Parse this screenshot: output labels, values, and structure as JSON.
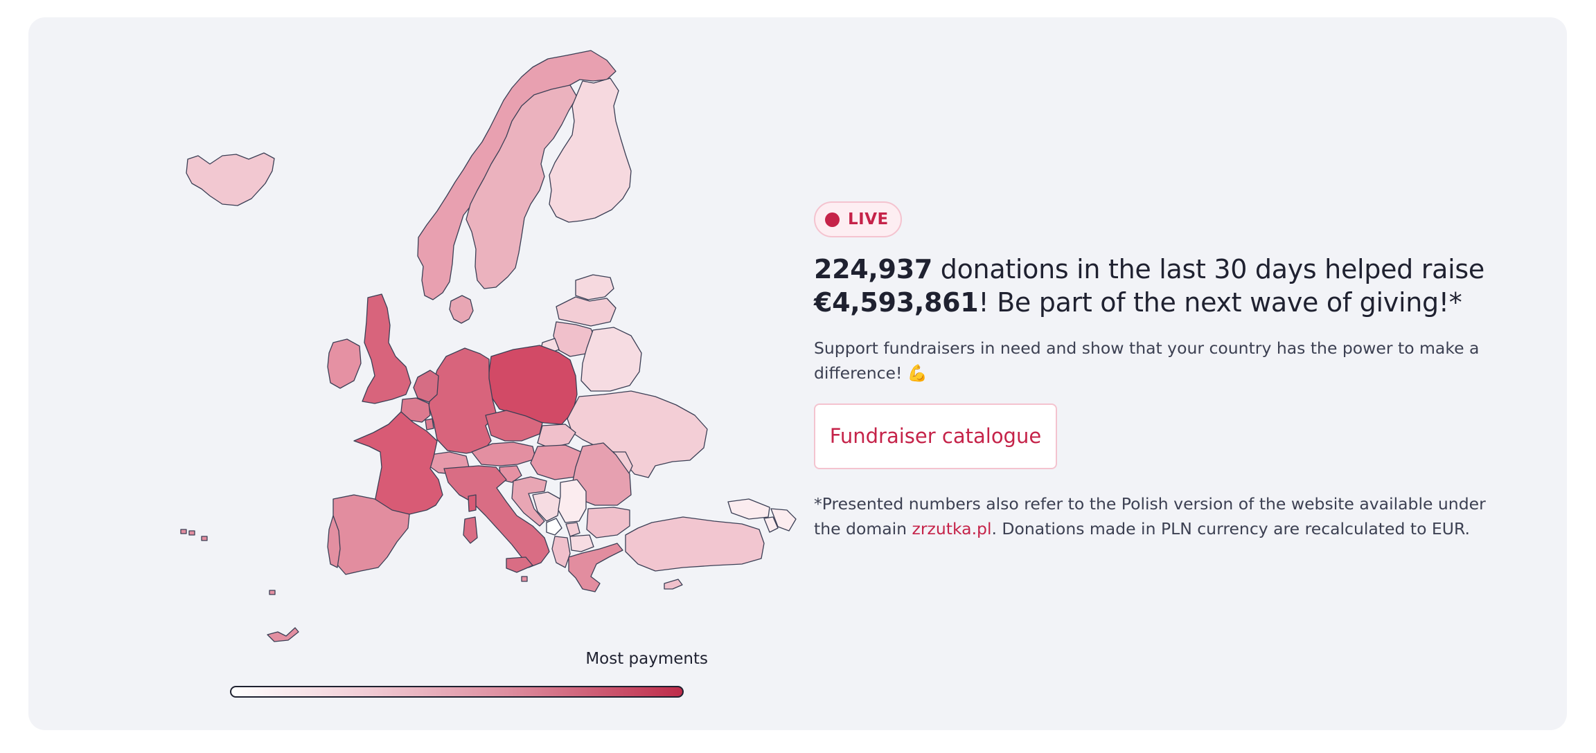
{
  "live_badge": {
    "label": "LIVE",
    "color": "#c52349"
  },
  "headline": {
    "donations_count": "224,937",
    "text_part1": " donations in the last 30 days helped raise ",
    "amount": "€4,593,861",
    "text_part2": "! Be part of the next wave of giving!*"
  },
  "subtext": "Support fundraisers in need and show that your country has the power to make a difference! 💪",
  "catalogue_button": {
    "label": "Fundraiser catalogue"
  },
  "footnote": {
    "text_before_link": "*Presented numbers also refer to the Polish version of the website available under the domain ",
    "link_text": "zrzutka.pl",
    "text_after_link": ". Donations made in PLN currency are recalculated to EUR."
  },
  "legend": {
    "label": "Most payments",
    "gradient_colors": [
      "#ffffff",
      "#f1ccd5",
      "#dd8c9e",
      "#be2c4a"
    ]
  },
  "map": {
    "theme_colors": {
      "card_background": "#f2f3f7",
      "country_border": "#3b3f55"
    },
    "regions": [
      {
        "name": "Iceland",
        "color": "#f2c8d1"
      },
      {
        "name": "Norway",
        "color": "#e8a0b0"
      },
      {
        "name": "Sweden",
        "color": "#ebb2be"
      },
      {
        "name": "Finland",
        "color": "#f6d9df"
      },
      {
        "name": "Estonia",
        "color": "#f6d9df"
      },
      {
        "name": "Latvia",
        "color": "#f3cdd5"
      },
      {
        "name": "Lithuania",
        "color": "#f0c0cb"
      },
      {
        "name": "Belarus",
        "color": "#f6dce2"
      },
      {
        "name": "Ukraine",
        "color": "#f3ced6"
      },
      {
        "name": "Moldova",
        "color": "#f3ced6"
      },
      {
        "name": "Romania",
        "color": "#e6a0b0"
      },
      {
        "name": "Bulgaria",
        "color": "#f0c0cb"
      },
      {
        "name": "Turkey",
        "color": "#f2c6d0"
      },
      {
        "name": "Greece",
        "color": "#e28d9f"
      },
      {
        "name": "Albania",
        "color": "#f0c0cb"
      },
      {
        "name": "North Macedonia",
        "color": "#f6dce2"
      },
      {
        "name": "Serbia",
        "color": "#fbecef"
      },
      {
        "name": "Bosnia and Herzegovina",
        "color": "#f6dce2"
      },
      {
        "name": "Croatia",
        "color": "#e8a6b4"
      },
      {
        "name": "Slovenia",
        "color": "#e591a3"
      },
      {
        "name": "Hungary",
        "color": "#e799aa"
      },
      {
        "name": "Slovakia",
        "color": "#f0c0cb"
      },
      {
        "name": "Czechia",
        "color": "#d9687f"
      },
      {
        "name": "Austria",
        "color": "#e38fa1"
      },
      {
        "name": "Poland",
        "color": "#d24a66"
      },
      {
        "name": "Germany",
        "color": "#d8647c"
      },
      {
        "name": "Switzerland",
        "color": "#e699aa"
      },
      {
        "name": "Italy",
        "color": "#d96d84"
      },
      {
        "name": "France",
        "color": "#d85b75"
      },
      {
        "name": "Belgium",
        "color": "#dc7a8f"
      },
      {
        "name": "Netherlands",
        "color": "#d66d84"
      },
      {
        "name": "Denmark",
        "color": "#e8a6b4"
      },
      {
        "name": "United Kingdom",
        "color": "#d8647c"
      },
      {
        "name": "Ireland",
        "color": "#e591a3"
      },
      {
        "name": "Spain",
        "color": "#e28d9f"
      },
      {
        "name": "Portugal",
        "color": "#e38fa1"
      },
      {
        "name": "Cyprus",
        "color": "#f0c0cb"
      },
      {
        "name": "Georgia",
        "color": "#fbecef"
      },
      {
        "name": "Armenia",
        "color": "#fbecef"
      },
      {
        "name": "Azerbaijan",
        "color": "#fbecef"
      },
      {
        "name": "Kaliningrad",
        "color": "#f6dce2"
      },
      {
        "name": "Luxembourg",
        "color": "#dc7a8f"
      },
      {
        "name": "Montenegro",
        "color": "#ffffff"
      },
      {
        "name": "Kosovo",
        "color": "#f3ced6"
      },
      {
        "name": "Malta",
        "color": "#e591a3"
      },
      {
        "name": "Canary Islands",
        "color": "#e28d9f"
      },
      {
        "name": "Azores",
        "color": "#e38fa1"
      },
      {
        "name": "Madeira",
        "color": "#e38fa1"
      }
    ]
  }
}
